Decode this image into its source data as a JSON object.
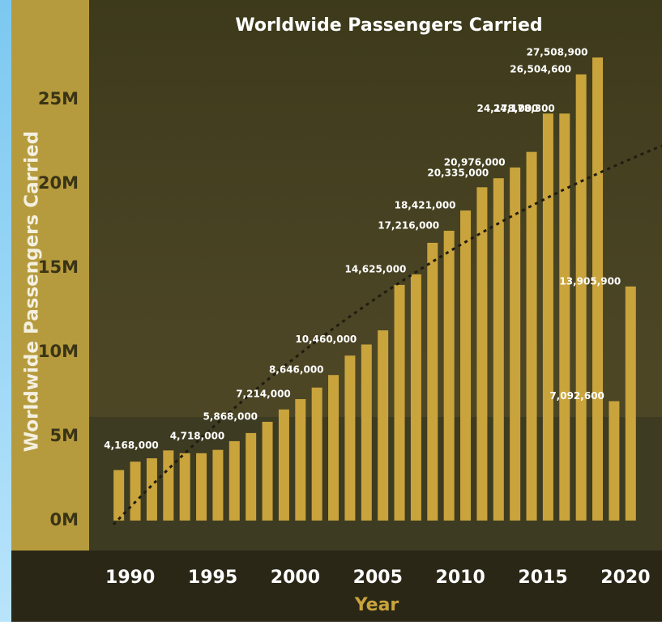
{
  "chart_data": {
    "type": "bar",
    "title": "Worldwide Passengers Carried",
    "x_label": "Year",
    "y_label": "Worldwide Passengers Carried",
    "x": [
      1990,
      1991,
      1992,
      1993,
      1994,
      1995,
      1996,
      1997,
      1998,
      1999,
      2000,
      2001,
      2002,
      2003,
      2004,
      2005,
      2006,
      2007,
      2008,
      2009,
      2010,
      2011,
      2012,
      2013,
      2014,
      2015,
      2016,
      2017,
      2018,
      2019,
      2020,
      2021
    ],
    "values": [
      3000000,
      3500000,
      3700000,
      4168000,
      4000000,
      4000000,
      4200000,
      4718000,
      5200000,
      5868000,
      6600000,
      7214000,
      7900000,
      8646000,
      9800000,
      10460000,
      11300000,
      14000000,
      14625000,
      16500000,
      17216000,
      18421000,
      19800000,
      20335000,
      20976000,
      21900000,
      24178000,
      24178300,
      26504600,
      27508900,
      7092600,
      13905900
    ],
    "value_labels": [
      null,
      null,
      null,
      "4,168,000",
      null,
      null,
      null,
      "4,718,000",
      null,
      "5,868,000",
      null,
      "7,214,000",
      null,
      "8,646,000",
      null,
      "10,460,000",
      null,
      null,
      "14,625,000",
      null,
      "17,216,000",
      "18,421,000",
      null,
      "20,335,000",
      "20,976,000",
      null,
      "24,178,000",
      "24,178,300",
      "26,504,600",
      "27,508,900",
      "7,092,600",
      "13,905,900"
    ],
    "color": "#c9a43c",
    "xlim": [
      1988.2,
      2022.9
    ],
    "xticks": [
      1990,
      1995,
      2000,
      2005,
      2010,
      2015,
      2020
    ],
    "ylim": [
      0,
      29000000
    ],
    "yticks": [
      {
        "value": 0,
        "label": "0M"
      },
      {
        "value": 5000000,
        "label": "5M"
      },
      {
        "value": 10000000,
        "label": "10M"
      },
      {
        "value": 15000000,
        "label": "15M"
      },
      {
        "value": 20000000,
        "label": "20M"
      },
      {
        "value": 25000000,
        "label": "25M"
      }
    ]
  }
}
